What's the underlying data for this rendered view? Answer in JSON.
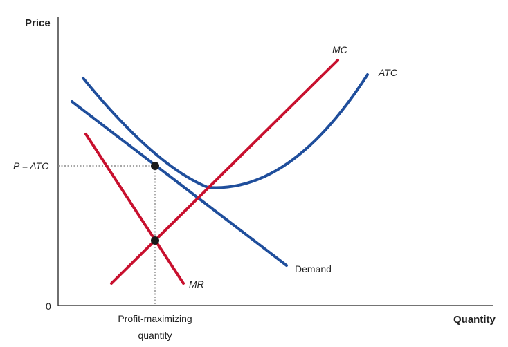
{
  "axes": {
    "y_title": "Price",
    "x_title": "Quantity",
    "origin_label": "0"
  },
  "labels": {
    "price_level": "P = ATC",
    "quantity_line1": "Profit-maximizing",
    "quantity_line2": "quantity"
  },
  "curves": {
    "mc": {
      "label": "MC",
      "color": "#c8102e"
    },
    "atc": {
      "label": "ATC",
      "color": "#1f4e9c"
    },
    "demand": {
      "label": "Demand",
      "color": "#1f4e9c"
    },
    "mr": {
      "label": "MR",
      "color": "#c8102e"
    }
  },
  "colors": {
    "axis": "#222222",
    "guide": "#8a8a8a",
    "point": "#1a1a1a"
  }
}
